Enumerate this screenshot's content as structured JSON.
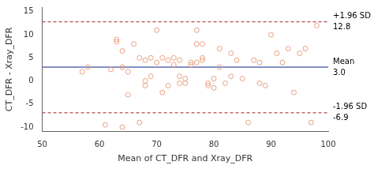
{
  "chart_data": {
    "type": "scatter",
    "xlabel": "Mean of CT_DFR and Xray_DFR",
    "ylabel": "CT_DFR - Xray_DFR",
    "xlim": [
      50,
      100
    ],
    "ylim": [
      -11,
      16
    ],
    "xticks": [
      50,
      60,
      70,
      80,
      90,
      100
    ],
    "yticks": [
      -10,
      -5,
      0,
      5,
      10,
      15
    ],
    "grid": false,
    "series": [
      {
        "color": "#e8a080",
        "marker": "open_circle",
        "x": [
          57,
          58,
          61,
          62,
          63,
          63,
          64,
          64,
          64,
          65,
          65,
          66,
          67,
          67,
          68,
          68,
          68,
          69,
          69,
          70,
          70,
          71,
          71,
          72,
          72,
          73,
          73,
          74,
          74,
          74,
          75,
          75,
          76,
          76,
          77,
          77,
          77,
          78,
          78,
          78,
          79,
          79,
          80,
          80,
          81,
          81,
          82,
          83,
          83,
          84,
          85,
          86,
          87,
          88,
          88,
          89,
          90,
          91,
          92,
          93,
          94,
          95,
          96,
          97,
          98
        ],
        "values": [
          2,
          3,
          -9.5,
          2.5,
          9,
          8.5,
          6.5,
          -10,
          3,
          2,
          -3,
          8,
          -9,
          5,
          4.5,
          0,
          -1,
          5,
          1,
          11,
          4,
          5,
          -2.5,
          4.5,
          -1,
          3.5,
          5,
          1,
          4.5,
          -0.5,
          0.5,
          -0.5,
          4,
          3.5,
          11,
          8,
          4,
          8,
          5,
          4.5,
          -1,
          -0.5,
          0.5,
          -1.5,
          7,
          3,
          -0.5,
          6,
          1,
          4.5,
          0.5,
          -9,
          4.5,
          -0.5,
          4,
          -1,
          10,
          6,
          4,
          7,
          -2.5,
          6,
          7,
          -9,
          12
        ]
      }
    ],
    "lines": [
      {
        "name": "+1.96 SD",
        "value": 12.8,
        "label": "12.8",
        "color": "#a52020",
        "line_style": "dashed"
      },
      {
        "name": "Mean",
        "value": 3.0,
        "label": "3.0",
        "color": "#5b6ab5",
        "line_style": "solid"
      },
      {
        "name": "-1.96 SD",
        "value": -6.9,
        "label": "-6.9",
        "color": "#a52020",
        "line_style": "dashed"
      }
    ]
  }
}
